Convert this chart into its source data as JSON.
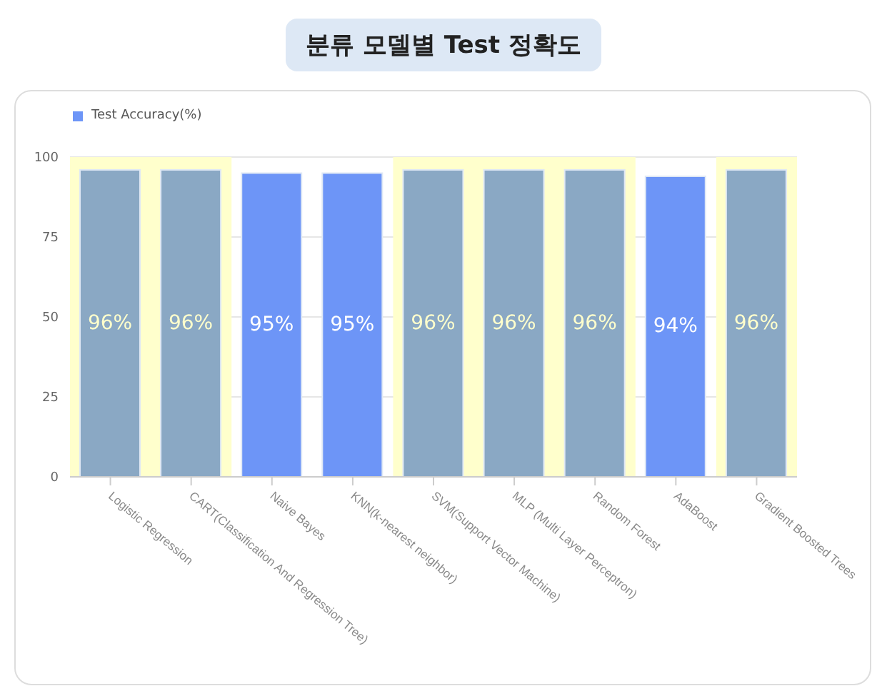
{
  "chart_data": {
    "type": "bar",
    "title": "분류 모델별 Test 정확도",
    "categories": [
      "Logistic Regression",
      "CART(Classification And Regression Tree)",
      "Naive Bayes",
      "KNN(k-nearest neighbor)",
      "SVM(Support Vector Machine)",
      "MLP (Multi Layer Perceptron)",
      "Random Forest",
      "AdaBoost",
      "Gradient Boosted Trees"
    ],
    "series": [
      {
        "name": "Test Accuracy(%)",
        "color": "#6d95f7",
        "values": [
          96,
          96,
          95,
          95,
          96,
          96,
          96,
          94,
          96
        ],
        "colors": [
          "#8aa8c4",
          "#8aa8c4",
          "#6d95f7",
          "#6d95f7",
          "#8aa8c4",
          "#8aa8c4",
          "#8aa8c4",
          "#6d95f7",
          "#8aa8c4"
        ],
        "value_labels": [
          "96%",
          "96%",
          "95%",
          "95%",
          "96%",
          "96%",
          "96%",
          "94%",
          "96%"
        ]
      }
    ],
    "bands": [
      {
        "axis": "x",
        "from": "Logistic Regression",
        "to": "CART(Classification And Regression Tree)",
        "color": "#ffffcc"
      },
      {
        "axis": "x",
        "from": "SVM(Support Vector Machine)",
        "to": "Random Forest",
        "color": "#ffffcc"
      },
      {
        "axis": "x",
        "from": "Gradient Boosted Trees",
        "to": "Gradient Boosted Trees",
        "color": "#ffffcc"
      }
    ],
    "ylim": [
      0,
      100
    ],
    "yticks": [
      0,
      25,
      50,
      75,
      100
    ],
    "grid": "y",
    "legend": "top left"
  }
}
